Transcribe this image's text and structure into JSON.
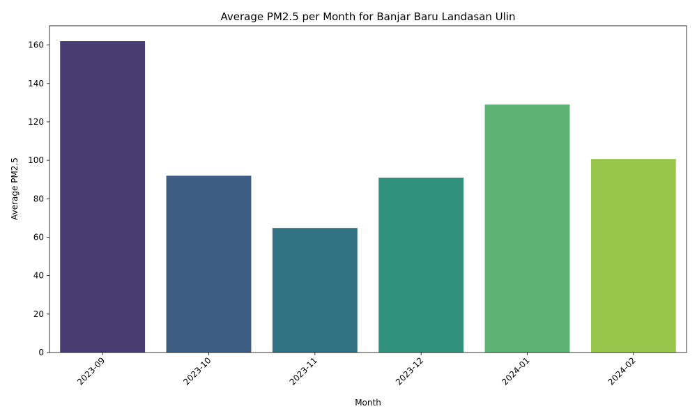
{
  "chart_data": {
    "type": "bar",
    "title": "Average PM2.5 per Month for Banjar Baru Landasan Ulin",
    "xlabel": "Month",
    "ylabel": "Average PM2.5",
    "categories": [
      "2023-09",
      "2023-10",
      "2023-11",
      "2023-12",
      "2024-01",
      "2024-02"
    ],
    "values": [
      162,
      92,
      64.8,
      91,
      129,
      100.7
    ],
    "colors": [
      "#483d73",
      "#3e5c82",
      "#327182",
      "#31917d",
      "#5cb273",
      "#98c64b"
    ],
    "ylim": [
      0,
      170
    ],
    "yticks": [
      0,
      20,
      40,
      60,
      80,
      100,
      120,
      140,
      160
    ],
    "grid": false,
    "legend": "none"
  }
}
